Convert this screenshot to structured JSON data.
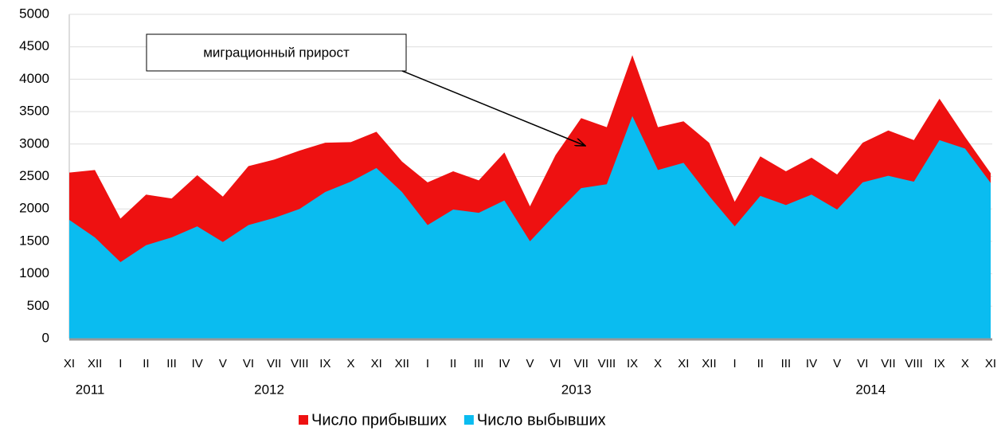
{
  "chart_data": {
    "type": "area",
    "annotation": "миграционный прирост",
    "categories": [
      "XI",
      "XII",
      "I",
      "II",
      "III",
      "IV",
      "V",
      "VI",
      "VII",
      "VIII",
      "IX",
      "X",
      "XI",
      "XII",
      "I",
      "II",
      "III",
      "IV",
      "V",
      "VI",
      "VII",
      "VIII",
      "IX",
      "X",
      "XI",
      "XII",
      "I",
      "II",
      "III",
      "IV",
      "V",
      "VI",
      "VII",
      "VIII",
      "IX",
      "X",
      "XI"
    ],
    "x_groups": [
      {
        "label": "2011",
        "from": 0,
        "to": 1
      },
      {
        "label": "2012",
        "from": 2,
        "to": 13
      },
      {
        "label": "2013",
        "from": 14,
        "to": 25
      },
      {
        "label": "2014",
        "from": 26,
        "to": 36
      }
    ],
    "series": [
      {
        "name": "Число прибывших",
        "color": "#ee1111",
        "values": [
          2560,
          2600,
          1850,
          2220,
          2160,
          2520,
          2190,
          2660,
          2760,
          2900,
          3020,
          3030,
          3190,
          2730,
          2410,
          2580,
          2440,
          2870,
          2040,
          2830,
          3400,
          3260,
          4370,
          3260,
          3350,
          3020,
          2110,
          2810,
          2580,
          2790,
          2530,
          3020,
          3210,
          3060,
          3700,
          3110,
          2550
        ]
      },
      {
        "name": "Число выбывших",
        "color": "#0abcf0",
        "values": [
          1830,
          1560,
          1180,
          1440,
          1560,
          1730,
          1490,
          1750,
          1860,
          2000,
          2260,
          2420,
          2630,
          2260,
          1750,
          1990,
          1940,
          2130,
          1500,
          1920,
          2320,
          2380,
          3430,
          2600,
          2710,
          2200,
          1730,
          2200,
          2060,
          2220,
          1990,
          2410,
          2510,
          2420,
          3060,
          2930,
          2400
        ]
      }
    ],
    "ylim": [
      0,
      5000
    ],
    "yticks": [
      0,
      500,
      1000,
      1500,
      2000,
      2500,
      3000,
      3500,
      4000,
      4500,
      5000
    ],
    "grid": true,
    "legend": "bottom"
  }
}
